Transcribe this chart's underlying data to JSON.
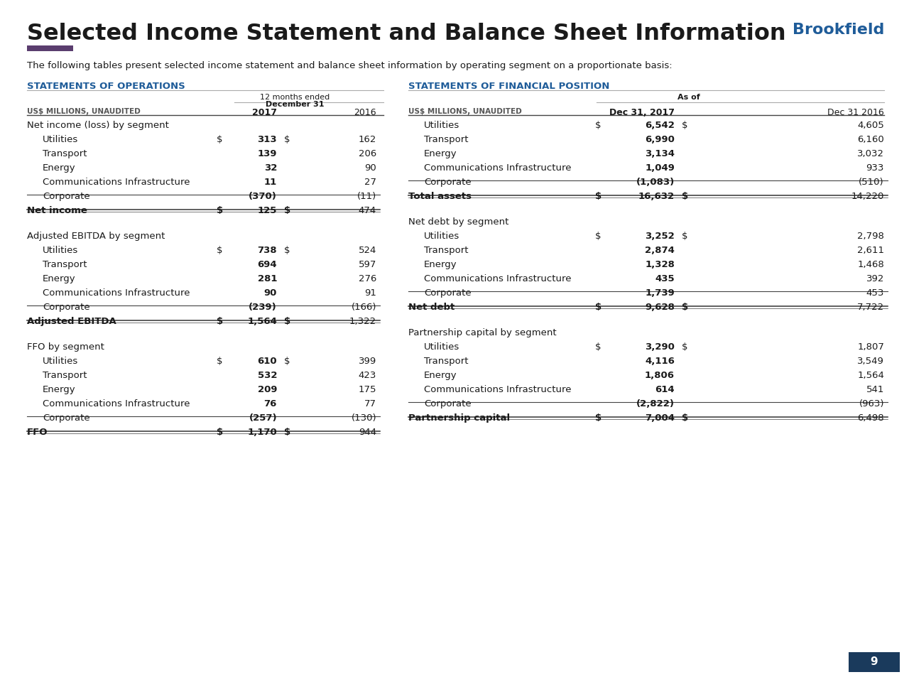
{
  "title": "Selected Income Statement and Balance Sheet Information",
  "brookfield_label": "Brookfield",
  "subtitle": "The following tables present selected income statement and balance sheet information by operating segment on a proportionate basis:",
  "left_section_title": "STATEMENTS OF OPERATIONS",
  "right_section_title": "STATEMENTS OF FINANCIAL POSITION",
  "accent_color": "#5a3d6e",
  "blue_color": "#1f5c99",
  "background": "#ffffff",
  "left_table": {
    "sections": [
      {
        "section_header": "Net income (loss) by segment",
        "rows": [
          {
            "label": "Utilities",
            "dollar": true,
            "v2017": "313",
            "v2016": "162"
          },
          {
            "label": "Transport",
            "dollar": false,
            "v2017": "139",
            "v2016": "206"
          },
          {
            "label": "Energy",
            "dollar": false,
            "v2017": "32",
            "v2016": "90"
          },
          {
            "label": "Communications Infrastructure",
            "dollar": false,
            "v2017": "11",
            "v2016": "27"
          },
          {
            "label": "Corporate",
            "dollar": false,
            "v2017": "(370)",
            "v2016": "(11)"
          }
        ],
        "total_row": {
          "label": "Net income",
          "dollar": true,
          "v2017": "125",
          "v2016": "474"
        }
      },
      {
        "section_header": "Adjusted EBITDA by segment",
        "rows": [
          {
            "label": "Utilities",
            "dollar": true,
            "v2017": "738",
            "v2016": "524"
          },
          {
            "label": "Transport",
            "dollar": false,
            "v2017": "694",
            "v2016": "597"
          },
          {
            "label": "Energy",
            "dollar": false,
            "v2017": "281",
            "v2016": "276"
          },
          {
            "label": "Communications Infrastructure",
            "dollar": false,
            "v2017": "90",
            "v2016": "91"
          },
          {
            "label": "Corporate",
            "dollar": false,
            "v2017": "(239)",
            "v2016": "(166)"
          }
        ],
        "total_row": {
          "label": "Adjusted EBITDA",
          "dollar": true,
          "v2017": "1,564",
          "v2016": "1,322"
        }
      },
      {
        "section_header": "FFO by segment",
        "rows": [
          {
            "label": "Utilities",
            "dollar": true,
            "v2017": "610",
            "v2016": "399"
          },
          {
            "label": "Transport",
            "dollar": false,
            "v2017": "532",
            "v2016": "423"
          },
          {
            "label": "Energy",
            "dollar": false,
            "v2017": "209",
            "v2016": "175"
          },
          {
            "label": "Communications Infrastructure",
            "dollar": false,
            "v2017": "76",
            "v2016": "77"
          },
          {
            "label": "Corporate",
            "dollar": false,
            "v2017": "(257)",
            "v2016": "(130)"
          }
        ],
        "total_row": {
          "label": "FFO",
          "dollar": true,
          "v2017": "1,170",
          "v2016": "944"
        }
      }
    ]
  },
  "right_table": {
    "sections": [
      {
        "section_header": "",
        "rows": [
          {
            "label": "Utilities",
            "dollar": true,
            "v2017": "6,542",
            "v2016": "4,605"
          },
          {
            "label": "Transport",
            "dollar": false,
            "v2017": "6,990",
            "v2016": "6,160"
          },
          {
            "label": "Energy",
            "dollar": false,
            "v2017": "3,134",
            "v2016": "3,032"
          },
          {
            "label": "Communications Infrastructure",
            "dollar": false,
            "v2017": "1,049",
            "v2016": "933"
          },
          {
            "label": "Corporate",
            "dollar": false,
            "v2017": "(1,083)",
            "v2016": "(510)"
          }
        ],
        "total_row": {
          "label": "Total assets",
          "dollar": true,
          "v2017": "16,632",
          "v2016": "14,220"
        }
      },
      {
        "section_header": "Net debt by segment",
        "rows": [
          {
            "label": "Utilities",
            "dollar": true,
            "v2017": "3,252",
            "v2016": "2,798"
          },
          {
            "label": "Transport",
            "dollar": false,
            "v2017": "2,874",
            "v2016": "2,611"
          },
          {
            "label": "Energy",
            "dollar": false,
            "v2017": "1,328",
            "v2016": "1,468"
          },
          {
            "label": "Communications Infrastructure",
            "dollar": false,
            "v2017": "435",
            "v2016": "392"
          },
          {
            "label": "Corporate",
            "dollar": false,
            "v2017": "1,739",
            "v2016": "453"
          }
        ],
        "total_row": {
          "label": "Net debt",
          "dollar": true,
          "v2017": "9,628",
          "v2016": "7,722"
        }
      },
      {
        "section_header": "Partnership capital by segment",
        "rows": [
          {
            "label": "Utilities",
            "dollar": true,
            "v2017": "3,290",
            "v2016": "1,807"
          },
          {
            "label": "Transport",
            "dollar": false,
            "v2017": "4,116",
            "v2016": "3,549"
          },
          {
            "label": "Energy",
            "dollar": false,
            "v2017": "1,806",
            "v2016": "1,564"
          },
          {
            "label": "Communications Infrastructure",
            "dollar": false,
            "v2017": "614",
            "v2016": "541"
          },
          {
            "label": "Corporate",
            "dollar": false,
            "v2017": "(2,822)",
            "v2016": "(963)"
          }
        ],
        "total_row": {
          "label": "Partnership capital",
          "dollar": true,
          "v2017": "7,004",
          "v2016": "6,498"
        }
      }
    ]
  },
  "page_number": "9"
}
